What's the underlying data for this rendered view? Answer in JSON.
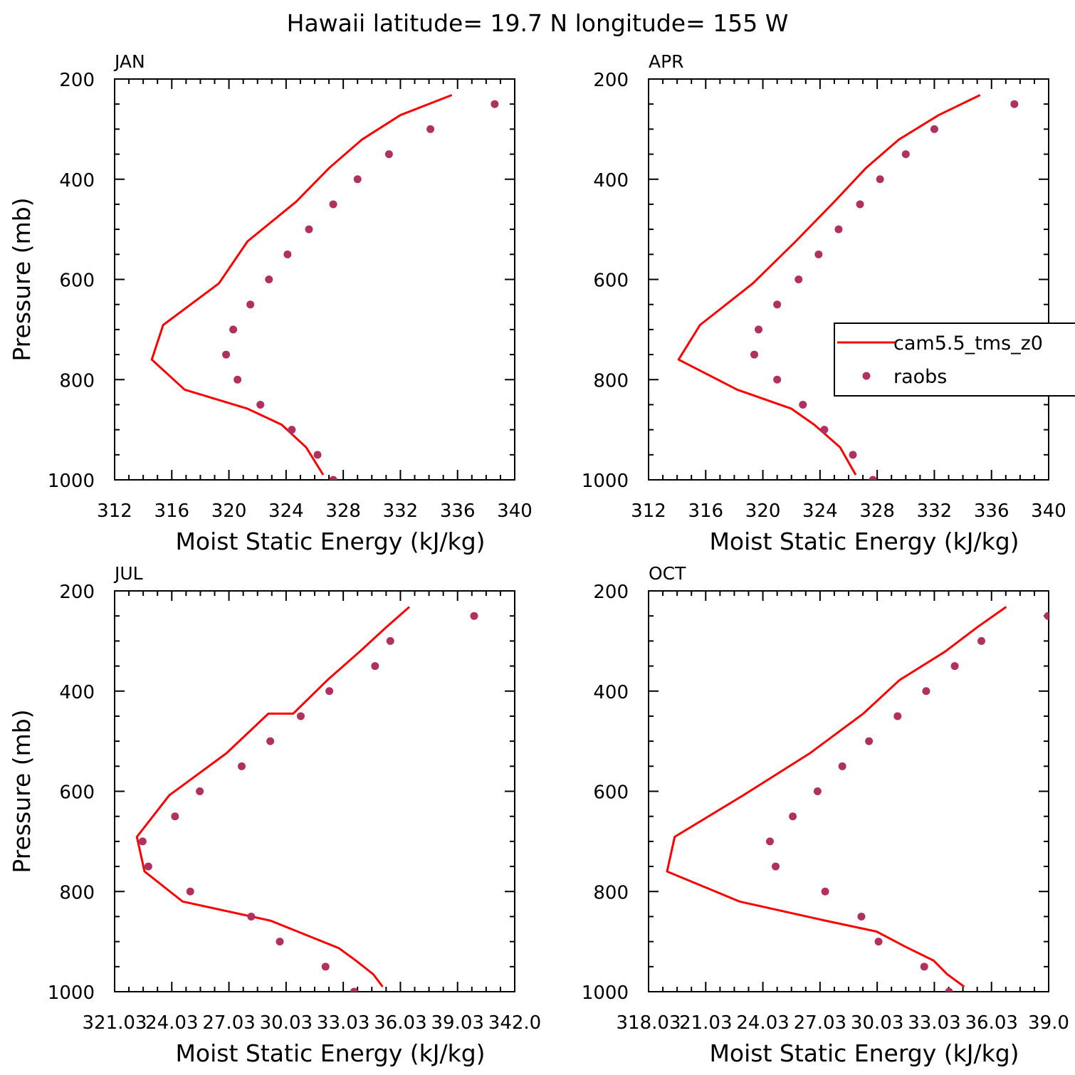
{
  "title": "Hawaii  latitude= 19.7 N longitude= 155 W",
  "chart_data": [
    {
      "type": "line",
      "panel_label": "JAN",
      "xlabel": "Moist Static Energy (kJ/kg)",
      "ylabel": "Pressure (mb)",
      "xlim": [
        312,
        340
      ],
      "ylim": [
        1000,
        200
      ],
      "x_ticks": [
        "312",
        "316",
        "320",
        "324",
        "328",
        "332",
        "336",
        "340"
      ],
      "y_ticks": [
        "200",
        "400",
        "600",
        "800",
        "1000"
      ],
      "series": [
        {
          "name": "cam5.5_tms_z0",
          "color": "#ff0000",
          "style": "line",
          "x": [
            335.6,
            332.0,
            329.3,
            327.0,
            324.7,
            321.3,
            319.3,
            315.4,
            314.6,
            316.9,
            321.3,
            323.7,
            325.4,
            326.6
          ],
          "y": [
            232,
            272,
            321,
            378,
            445,
            524,
            608,
            691,
            760,
            820,
            858,
            890,
            935,
            990
          ]
        },
        {
          "name": "raobs",
          "color": "#b03060",
          "style": "dot",
          "x": [
            338.6,
            334.1,
            331.2,
            329.0,
            327.3,
            325.6,
            324.1,
            322.8,
            321.5,
            320.3,
            319.8,
            320.6,
            322.2,
            324.4,
            326.2,
            327.3
          ],
          "y": [
            250,
            300,
            350,
            400,
            450,
            500,
            550,
            600,
            650,
            700,
            750,
            800,
            850,
            900,
            950,
            1000
          ]
        }
      ]
    },
    {
      "type": "line",
      "panel_label": "APR",
      "xlabel": "Moist Static Energy (kJ/kg)",
      "ylabel": "",
      "xlim": [
        312,
        340
      ],
      "ylim": [
        1000,
        200
      ],
      "x_ticks": [
        "312",
        "316",
        "320",
        "324",
        "328",
        "332",
        "336",
        "340"
      ],
      "y_ticks": [
        "200",
        "400",
        "600",
        "800",
        "1000"
      ],
      "legend": {
        "position": "right",
        "entries": [
          "cam5.5_tms_z0",
          "raobs"
        ]
      },
      "series": [
        {
          "name": "cam5.5_tms_z0",
          "color": "#ff0000",
          "style": "line",
          "x": [
            335.2,
            332.3,
            329.5,
            327.2,
            325.0,
            322.3,
            319.3,
            315.6,
            314.1,
            318.2,
            322.0,
            323.6,
            325.4,
            326.5
          ],
          "y": [
            232,
            272,
            321,
            378,
            445,
            524,
            608,
            691,
            760,
            820,
            858,
            890,
            935,
            990
          ]
        },
        {
          "name": "raobs",
          "color": "#b03060",
          "style": "dot",
          "x": [
            337.6,
            332.0,
            330.0,
            328.2,
            326.8,
            325.3,
            323.9,
            322.5,
            321.0,
            319.7,
            319.4,
            321.0,
            322.8,
            324.3,
            326.3,
            327.7
          ],
          "y": [
            250,
            300,
            350,
            400,
            450,
            500,
            550,
            600,
            650,
            700,
            750,
            800,
            850,
            900,
            950,
            1000
          ]
        }
      ]
    },
    {
      "type": "line",
      "panel_label": "JUL",
      "xlabel": "Moist Static Energy (kJ/kg)",
      "ylabel": "Pressure (mb)",
      "xlim": [
        321.03,
        342.03
      ],
      "ylim": [
        1000,
        200
      ],
      "x_ticks": [
        "321.03",
        "24.03",
        "27.03",
        "30.03",
        "33.03",
        "36.03",
        "39.03",
        "342.0"
      ],
      "y_ticks": [
        "200",
        "400",
        "600",
        "800",
        "1000"
      ],
      "series": [
        {
          "name": "cam5.5_tms_z0",
          "color": "#ff0000",
          "style": "line",
          "x": [
            336.5,
            335.3,
            333.9,
            332.2,
            330.4,
            329.1,
            326.9,
            323.9,
            322.2,
            322.6,
            324.6,
            329.2,
            331.3,
            332.8,
            333.7,
            334.6,
            335.1
          ],
          "y": [
            232,
            272,
            321,
            378,
            445,
            445,
            524,
            608,
            691,
            760,
            820,
            858,
            890,
            913,
            938,
            965,
            990
          ]
        },
        {
          "name": "raobs",
          "color": "#b03060",
          "style": "dot",
          "x": [
            339.9,
            335.5,
            334.7,
            332.3,
            330.8,
            329.2,
            327.7,
            325.5,
            324.2,
            322.5,
            322.8,
            325.0,
            328.2,
            329.7,
            332.1,
            333.6
          ],
          "y": [
            250,
            300,
            350,
            400,
            450,
            500,
            550,
            600,
            650,
            700,
            750,
            800,
            850,
            900,
            950,
            1000
          ]
        }
      ]
    },
    {
      "type": "line",
      "panel_label": "OCT",
      "xlabel": "Moist Static Energy (kJ/kg)",
      "ylabel": "",
      "xlim": [
        318.03,
        339.03
      ],
      "ylim": [
        1000,
        200
      ],
      "x_ticks": [
        "318.03",
        "21.03",
        "24.03",
        "27.03",
        "30.03",
        "33.03",
        "36.03",
        "39.0"
      ],
      "y_ticks": [
        "200",
        "400",
        "600",
        "800",
        "1000"
      ],
      "series": [
        {
          "name": "cam5.5_tms_z0",
          "color": "#ff0000",
          "style": "line",
          "x": [
            336.8,
            335.3,
            333.6,
            331.2,
            329.3,
            326.5,
            323.0,
            319.4,
            319.0,
            322.8,
            327.3,
            330.0,
            331.5,
            333.0,
            333.7,
            334.6
          ],
          "y": [
            232,
            272,
            321,
            378,
            445,
            524,
            608,
            691,
            760,
            820,
            858,
            880,
            910,
            938,
            965,
            990
          ]
        },
        {
          "name": "raobs",
          "color": "#b03060",
          "style": "dot",
          "x": [
            339.0,
            335.5,
            334.1,
            332.6,
            331.1,
            329.6,
            328.2,
            326.9,
            325.6,
            324.4,
            324.7,
            327.3,
            329.2,
            330.1,
            332.5,
            333.8
          ],
          "y": [
            250,
            300,
            350,
            400,
            450,
            500,
            550,
            600,
            650,
            700,
            750,
            800,
            850,
            900,
            950,
            1000
          ]
        }
      ]
    }
  ]
}
